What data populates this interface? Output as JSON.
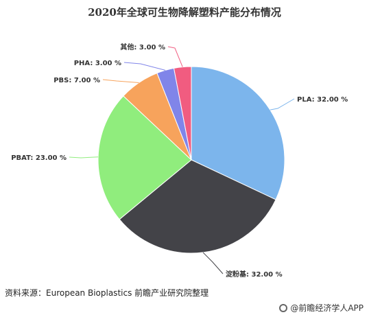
{
  "title": "2020年全球可生物降解塑料产能分布情况",
  "source": "资料来源：European Bioplastics 前瞻产业研究院整理",
  "brand": "@前瞻经济学人APP",
  "chart_data": {
    "type": "pie",
    "title": "2020年全球可生物降解塑料产能分布情况",
    "unit": "%",
    "start_angle_deg": 0,
    "direction": "clockwise",
    "slices": [
      {
        "label": "PLA",
        "value": 32.0,
        "color": "#7cb5ec",
        "display": "PLA: 32.00 %"
      },
      {
        "label": "淀粉基",
        "value": 32.0,
        "color": "#434348",
        "display": "淀粉基: 32.00 %"
      },
      {
        "label": "PBAT",
        "value": 23.0,
        "color": "#90ed7d",
        "display": "PBAT: 23.00 %"
      },
      {
        "label": "PBS",
        "value": 7.0,
        "color": "#f7a35c",
        "display": "PBS: 7.00 %"
      },
      {
        "label": "PHA",
        "value": 3.0,
        "color": "#8085e9",
        "display": "PHA: 3.00 %"
      },
      {
        "label": "其他",
        "value": 3.0,
        "color": "#f15c80",
        "display": "其他: 3.00 %"
      }
    ]
  }
}
